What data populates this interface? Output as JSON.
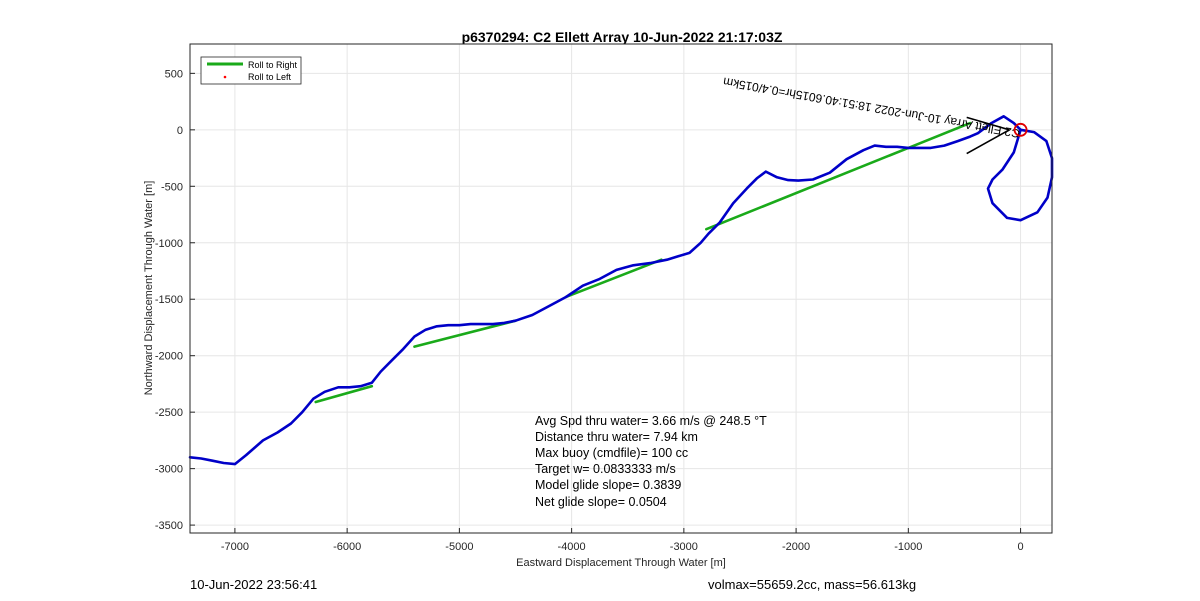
{
  "footer": {
    "left": "10-Jun-2022 23:56:41",
    "right": "volmax=55659.2cc, mass=56.613kg"
  },
  "colors": {
    "track": "#0000c8",
    "right_roll": "#1aaa1a",
    "left_roll": "#ff0000",
    "start_marker": "#e00000",
    "heading_line": "#000000",
    "grid": "#e6e6e6",
    "axes": "#262626"
  },
  "chart_data": {
    "type": "line",
    "title": "p6370294: C2 Ellett Array 10-Jun-2022 21:17:03Z",
    "xlabel": "Eastward Displacement Through Water [m]",
    "ylabel": "Northward Displacement Through Water [m]",
    "xlim": [
      -7400,
      280
    ],
    "ylim": [
      -3570,
      760
    ],
    "xticks": [
      -7000,
      -6000,
      -5000,
      -4000,
      -3000,
      -2000,
      -1000,
      0
    ],
    "yticks": [
      500,
      0,
      -500,
      -1000,
      -1500,
      -2000,
      -2500,
      -3000,
      -3500
    ],
    "grid": true,
    "legend": {
      "placement": "top-left",
      "entries": [
        {
          "label": "Roll to Right",
          "marker": "line",
          "color": "#1aaa1a"
        },
        {
          "label": "Roll to Left",
          "marker": "dot",
          "color": "#ff0000"
        }
      ]
    },
    "track": {
      "x": [
        0,
        -60,
        -150,
        -260,
        -380,
        -450,
        -560,
        -680,
        -800,
        -900,
        -1000,
        -1100,
        -1200,
        -1300,
        -1400,
        -1550,
        -1700,
        -1850,
        -1980,
        -2070,
        -2170,
        -2270,
        -2350,
        -2440,
        -2560,
        -2680,
        -2780,
        -2850,
        -2950,
        -3050,
        -3150,
        -3300,
        -3450,
        -3600,
        -3750,
        -3900,
        -4050,
        -4200,
        -4350,
        -4500,
        -4600,
        -4700,
        -4800,
        -4900,
        -5000,
        -5100,
        -5200,
        -5300,
        -5400,
        -5500,
        -5600,
        -5700,
        -5780,
        -5880,
        -5980,
        -6080,
        -6200,
        -6300,
        -6400,
        -6500,
        -6620,
        -6750,
        -6900,
        -7000,
        -7100,
        -7200,
        -7300,
        -7400
      ],
      "y": [
        0,
        60,
        120,
        60,
        -30,
        -60,
        -100,
        -140,
        -160,
        -160,
        -160,
        -150,
        -150,
        -140,
        -180,
        -260,
        -380,
        -440,
        -450,
        -445,
        -420,
        -370,
        -430,
        -520,
        -650,
        -820,
        -920,
        -1000,
        -1090,
        -1120,
        -1150,
        -1180,
        -1200,
        -1240,
        -1320,
        -1380,
        -1480,
        -1560,
        -1640,
        -1690,
        -1710,
        -1720,
        -1720,
        -1720,
        -1730,
        -1730,
        -1740,
        -1770,
        -1830,
        -1940,
        -2040,
        -2140,
        -2240,
        -2270,
        -2280,
        -2280,
        -2320,
        -2380,
        -2500,
        -2600,
        -2680,
        -2750,
        -2880,
        -2960,
        -2950,
        -2930,
        -2910,
        -2900
      ]
    },
    "loop": {
      "x": [
        0,
        120,
        230,
        280,
        280,
        240,
        150,
        0,
        -120,
        -250,
        -290,
        -250,
        -160,
        -60,
        0
      ],
      "y": [
        0,
        -20,
        -100,
        -250,
        -420,
        -600,
        -730,
        -800,
        -780,
        -650,
        -520,
        -440,
        -350,
        -200,
        0
      ]
    },
    "right_roll_segments": [
      [
        [
          -450,
          60
        ],
        [
          -1000,
          -160
        ]
      ],
      [
        [
          -1000,
          -160
        ],
        [
          -2800,
          -880
        ]
      ],
      [
        [
          -3200,
          -1150
        ],
        [
          -4050,
          -1480
        ]
      ],
      [
        [
          -4500,
          -1690
        ],
        [
          -5400,
          -1920
        ]
      ],
      [
        [
          -5780,
          -2270
        ],
        [
          -6280,
          -2410
        ]
      ]
    ],
    "heading_lines": [
      [
        [
          -100,
          0
        ],
        [
          -480,
          110
        ]
      ],
      [
        [
          -100,
          0
        ],
        [
          -480,
          -210
        ]
      ]
    ],
    "start_marker": {
      "x": 0,
      "y": 0
    },
    "rotated_annotation": {
      "text": "C2 Ellett Array 10-Jun-2022 18:51:40.6015hr=0.4/015km",
      "x": 0,
      "y": 0,
      "angle_deg": 190
    },
    "stats": [
      "Avg Spd thru water=  3.66 m/s @ 248.5 °T",
      "Distance thru water=  7.94 km",
      "Max buoy (cmdfile)= 100 cc",
      "Target w= 0.0833333 m/s",
      "Model glide slope= 0.3839",
      "Net glide slope= 0.0504"
    ]
  }
}
